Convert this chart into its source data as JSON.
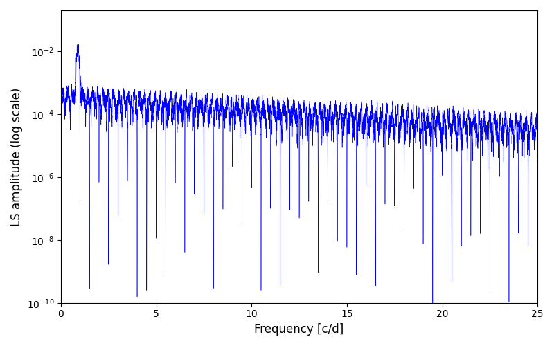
{
  "title": "",
  "xlabel": "Frequency [c/d]",
  "ylabel": "LS amplitude (log scale)",
  "xlim": [
    0,
    25
  ],
  "ylim": [
    1e-10,
    0.2
  ],
  "line_color": "#0000ff",
  "line_width": 0.4,
  "figsize": [
    8.0,
    5.0
  ],
  "dpi": 100,
  "background_color": "#ffffff",
  "seed": 42,
  "n_points": 25000,
  "freq_max": 25.0
}
